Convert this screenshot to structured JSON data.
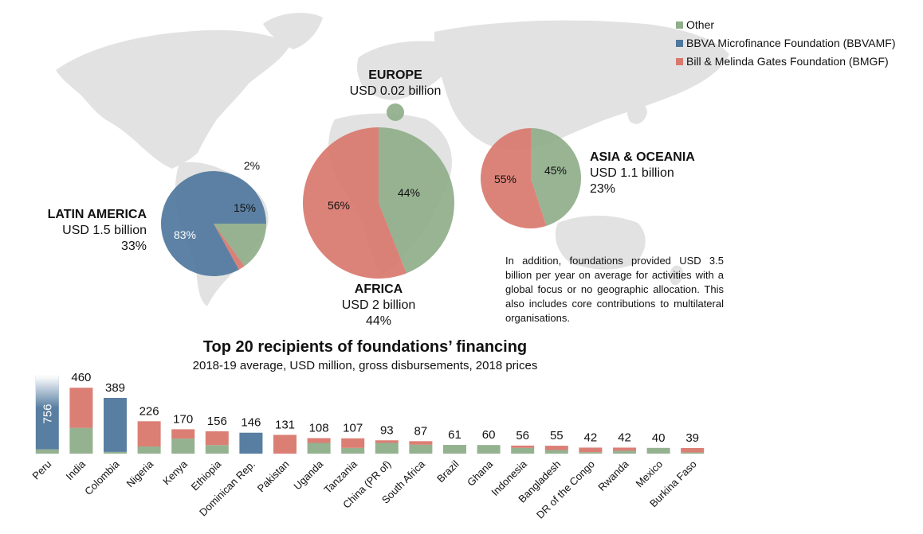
{
  "legend": {
    "items": [
      {
        "label": "Other",
        "color": "#8fae8a"
      },
      {
        "label": "BBVA Microfinance Foundation (BBVAMF)",
        "color": "#4f779d"
      },
      {
        "label": "Bill & Melinda Gates Foundation (BMGF)",
        "color": "#d9786e"
      }
    ]
  },
  "regions": {
    "latin_america": {
      "name": "LATIN AMERICA",
      "amount": "USD 1.5 billion",
      "share": "33%"
    },
    "europe": {
      "name": "EUROPE",
      "amount": "USD 0.02 billion"
    },
    "africa": {
      "name": "AFRICA",
      "amount": "USD 2 billion",
      "share": "44%"
    },
    "asia": {
      "name": "ASIA & OCEANIA",
      "amount": "USD 1.1 billion",
      "share": "23%"
    }
  },
  "note": "In addition, foundations provided USD 3.5 billion per year on average for activities with a global focus or no geographic allocation. This also includes core contributions to multilateral organisations.",
  "bar_section": {
    "title": "Top 20 recipients of foundations’ financing",
    "subtitle": "2018-19 average, USD million, gross disbursements, 2018 prices"
  },
  "chart_data": [
    {
      "type": "pie",
      "region": "LATIN AMERICA",
      "slices": [
        {
          "name": "BBVA Microfinance Foundation (BBVAMF)",
          "value": 83,
          "label": "83%"
        },
        {
          "name": "Bill & Melinda Gates Foundation (BMGF)",
          "value": 2,
          "label": "2%"
        },
        {
          "name": "Other",
          "value": 15,
          "label": "15%"
        }
      ]
    },
    {
      "type": "pie",
      "region": "EUROPE",
      "slices": [
        {
          "name": "Other",
          "value": 100,
          "label": ""
        }
      ]
    },
    {
      "type": "pie",
      "region": "AFRICA",
      "slices": [
        {
          "name": "Other",
          "value": 44,
          "label": "44%"
        },
        {
          "name": "Bill & Melinda Gates Foundation (BMGF)",
          "value": 56,
          "label": "56%"
        }
      ]
    },
    {
      "type": "pie",
      "region": "ASIA & OCEANIA",
      "slices": [
        {
          "name": "Other",
          "value": 45,
          "label": "45%"
        },
        {
          "name": "Bill & Melinda Gates Foundation (BMGF)",
          "value": 55,
          "label": "55%"
        }
      ]
    },
    {
      "type": "bar",
      "stacked": true,
      "title": "Top 20 recipients of foundations’ financing",
      "subtitle": "2018-19 average, USD million, gross disbursements, 2018 prices",
      "categories": [
        "Peru",
        "India",
        "Colombia",
        "Nigeria",
        "Kenya",
        "Ethiopia",
        "Dominican Rep.",
        "Pakistan",
        "Uganda",
        "Tanzania",
        "China (PR of)",
        "South Africa",
        "Brazil",
        "Ghana",
        "Indonesia",
        "Bangladesh",
        "DR of the Congo",
        "Rwanda",
        "Mexico",
        "Burkina Faso"
      ],
      "totals": [
        756,
        460,
        389,
        226,
        170,
        156,
        146,
        131,
        108,
        107,
        93,
        87,
        61,
        60,
        56,
        55,
        42,
        42,
        40,
        39
      ],
      "series": [
        {
          "name": "Other",
          "values": [
            30,
            180,
            12,
            50,
            105,
            60,
            0,
            0,
            75,
            40,
            75,
            62,
            61,
            60,
            40,
            25,
            10,
            20,
            40,
            8
          ]
        },
        {
          "name": "BBVA Microfinance Foundation (BBVAMF)",
          "values": [
            726,
            0,
            377,
            0,
            0,
            0,
            146,
            0,
            0,
            0,
            0,
            0,
            0,
            0,
            0,
            0,
            0,
            0,
            0,
            0
          ]
        },
        {
          "name": "Bill & Melinda Gates Foundation (BMGF)",
          "values": [
            0,
            280,
            0,
            176,
            65,
            96,
            0,
            131,
            33,
            67,
            18,
            25,
            0,
            0,
            16,
            30,
            32,
            22,
            0,
            31
          ]
        }
      ]
    }
  ]
}
